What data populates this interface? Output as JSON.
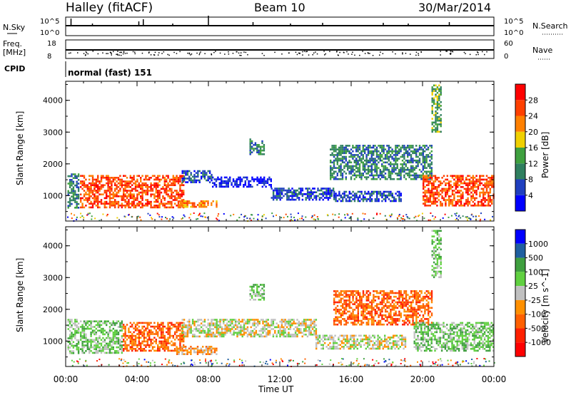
{
  "header": {
    "station": "Halley (fitACF)",
    "beam": "Beam 10",
    "date": "30/Mar/2014"
  },
  "top_panels": {
    "nsky_label": "N.Sky",
    "nsky_ticks": [
      "10^5",
      "10^0"
    ],
    "nsearch_label": "N.Search",
    "nsearch_ticks": [
      "10^5",
      "10^0"
    ],
    "freq_label": "Freq.",
    "freq_unit": "[MHz]",
    "freq_ticks": [
      "18",
      "8"
    ],
    "nave_label": "Nave",
    "nave_ticks": [
      "60",
      "0"
    ],
    "cpid_label": "CPID",
    "cpid_value": "normal (fast) 151"
  },
  "colors": {
    "power": [
      "#0000ff",
      "#1f3fbf",
      "#2f7f5f",
      "#3fa03f",
      "#f0d000",
      "#ff8000",
      "#ff4000",
      "#ff0000"
    ],
    "velocity": [
      "#0000ff",
      "#1f5fa0",
      "#3f9f3f",
      "#60d040",
      "#c0c0c0",
      "#ff9000",
      "#ff6000",
      "#ff2000",
      "#ff0000"
    ]
  },
  "chart_data": [
    {
      "type": "heatmap",
      "name": "power",
      "ylabel": "Slant Range [km]",
      "yticks": [
        1000,
        2000,
        3000,
        4000
      ],
      "ylim": [
        200,
        4600
      ],
      "xlim_hours": [
        0,
        24
      ],
      "xticks": [
        "00:00",
        "04:00",
        "08:00",
        "12:00",
        "16:00",
        "20:00",
        "00:00"
      ],
      "colorbar_label": "Power [dB]",
      "colorbar_ticks": [
        "4",
        "8",
        "12",
        "16",
        "20",
        "24",
        "28"
      ],
      "regions": [
        {
          "t0": 0.1,
          "t1": 0.7,
          "r0": 600,
          "r1": 1700,
          "level": 2
        },
        {
          "t0": 0.8,
          "t1": 6.6,
          "r0": 650,
          "r1": 1650,
          "level": 6
        },
        {
          "t0": 6.3,
          "t1": 8.5,
          "r0": 650,
          "r1": 850,
          "level": 5
        },
        {
          "t0": 6.5,
          "t1": 8.2,
          "r0": 1400,
          "r1": 1800,
          "level": 1
        },
        {
          "t0": 8.2,
          "t1": 11.5,
          "r0": 1250,
          "r1": 1600,
          "level": 0
        },
        {
          "t0": 10.3,
          "t1": 11.1,
          "r0": 2300,
          "r1": 2800,
          "level": 2
        },
        {
          "t0": 11.5,
          "t1": 15.0,
          "r0": 850,
          "r1": 1250,
          "level": 1
        },
        {
          "t0": 15.0,
          "t1": 18.8,
          "r0": 800,
          "r1": 1150,
          "level": 1
        },
        {
          "t0": 14.8,
          "t1": 20.5,
          "r0": 1500,
          "r1": 2600,
          "level": 2
        },
        {
          "t0": 20.0,
          "t1": 24.0,
          "r0": 700,
          "r1": 1650,
          "level": 6
        },
        {
          "t0": 20.5,
          "t1": 21.0,
          "r0": 3000,
          "r1": 4500,
          "level": 3
        }
      ]
    },
    {
      "type": "heatmap",
      "name": "velocity",
      "ylabel": "Slant Range [km]",
      "yticks": [
        1000,
        2000,
        3000,
        4000
      ],
      "ylim": [
        200,
        4600
      ],
      "xlim_hours": [
        0,
        24
      ],
      "xticks": [
        "00:00",
        "04:00",
        "08:00",
        "12:00",
        "16:00",
        "20:00",
        "00:00"
      ],
      "xlabel": "Time UT",
      "colorbar_label": "Velocity [m s^-1]",
      "colorbar_ticks": [
        "1000",
        "500",
        "100",
        "25",
        "-25",
        "-100",
        "-500",
        "-1000"
      ],
      "regions": [
        {
          "t0": 0.1,
          "t1": 0.7,
          "r0": 600,
          "r1": 1700,
          "level": 3
        },
        {
          "t0": 0.8,
          "t1": 3.2,
          "r0": 650,
          "r1": 1650,
          "level": 3
        },
        {
          "t0": 3.2,
          "t1": 6.6,
          "r0": 700,
          "r1": 1600,
          "level": 6
        },
        {
          "t0": 6.2,
          "t1": 8.5,
          "r0": 600,
          "r1": 850,
          "level": 5
        },
        {
          "t0": 6.5,
          "t1": 14.0,
          "r0": 1150,
          "r1": 1700,
          "level": 4
        },
        {
          "t0": 10.3,
          "t1": 11.1,
          "r0": 2300,
          "r1": 2800,
          "level": 3
        },
        {
          "t0": 14.0,
          "t1": 19.0,
          "r0": 750,
          "r1": 1200,
          "level": 4
        },
        {
          "t0": 15.0,
          "t1": 20.5,
          "r0": 1500,
          "r1": 2600,
          "level": 6
        },
        {
          "t0": 19.5,
          "t1": 24.0,
          "r0": 700,
          "r1": 1600,
          "level": 3
        },
        {
          "t0": 20.5,
          "t1": 21.0,
          "r0": 3000,
          "r1": 4500,
          "level": 3
        }
      ]
    }
  ]
}
